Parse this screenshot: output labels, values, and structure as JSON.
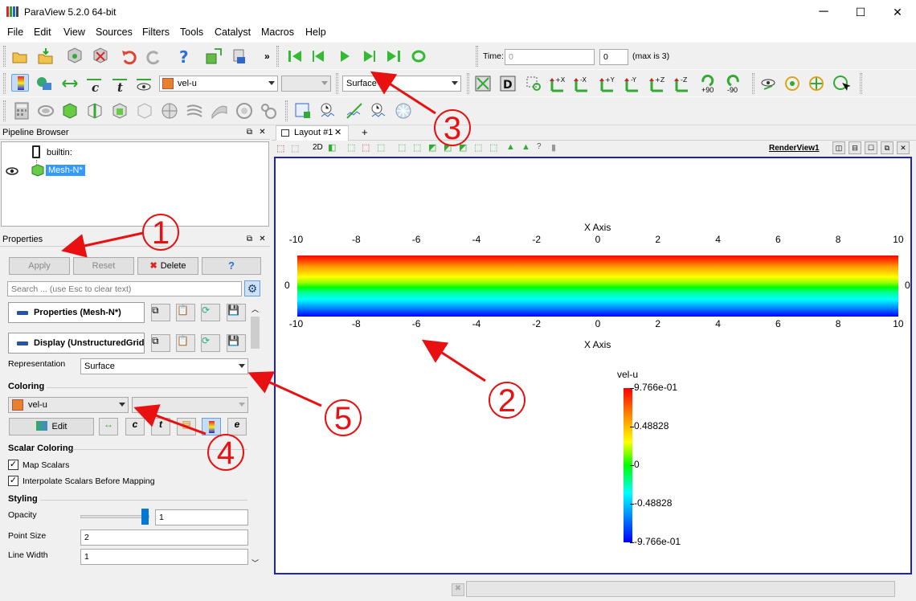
{
  "window": {
    "title": "ParaView 5.2.0 64-bit",
    "minimize": "─",
    "maximize": "☐",
    "close": "✕"
  },
  "menu": [
    "File",
    "Edit",
    "View",
    "Sources",
    "Filters",
    "Tools",
    "Catalyst",
    "Macros",
    "Help"
  ],
  "time_toolbar": {
    "time_label": "Time:",
    "time_value": "0",
    "index_value": "0",
    "max_label": "(max is 3)"
  },
  "color_toolbar": {
    "array": "vel-u",
    "component": "",
    "representation": "Surface",
    "rot_plus": "+90",
    "rot_minus": "-90"
  },
  "camera_axes": [
    "+X",
    "-X",
    "+Y",
    "-Y",
    "+Z",
    "-Z"
  ],
  "pipeline": {
    "header": "Pipeline Browser",
    "root": "builtin:",
    "item": "Mesh-N*"
  },
  "properties": {
    "header": "Properties",
    "apply": "Apply",
    "reset": "Reset",
    "delete": "Delete",
    "help": "?",
    "search_placeholder": "Search ... (use Esc to clear text)",
    "section_props": "Properties (Mesh-N*)",
    "section_display": "Display (UnstructuredGrid)",
    "representation_label": "Representation",
    "representation_value": "Surface",
    "coloring_label": "Coloring",
    "coloring_array": "vel-u",
    "edit_label": "Edit",
    "scalar_coloring_label": "Scalar Coloring",
    "map_scalars": "Map Scalars",
    "interpolate": "Interpolate Scalars Before Mapping",
    "styling_label": "Styling",
    "opacity_label": "Opacity",
    "opacity_value": "1",
    "point_size_label": "Point Size",
    "point_size_value": "2",
    "line_width_label": "Line Width",
    "line_width_value": "1"
  },
  "layout": {
    "tab": "Layout #1",
    "close": "✕",
    "add": "+",
    "view_mode": "2D",
    "render_view": "RenderView1"
  },
  "plot": {
    "axis_title_top": "X Axis",
    "axis_title_bottom": "X Axis",
    "x_ticks": [
      "-10",
      "-8",
      "-6",
      "-4",
      "-2",
      "0",
      "2",
      "4",
      "6",
      "8",
      "10"
    ],
    "y_tick_left": "0",
    "y_tick_right": "0",
    "colorbar_title": "vel-u",
    "colorbar_labels": [
      "9.766e-01",
      "0.48828",
      "0",
      "-0.48828",
      "-9.766e-01"
    ]
  },
  "chart_data": {
    "type": "heatmap",
    "xlim": [
      -10,
      10
    ],
    "colormap": [
      "#ff0000",
      "#ffff00",
      "#00ff00",
      "#00ffff",
      "#0000ff"
    ],
    "color_range": [
      -0.9766,
      0.9766
    ]
  },
  "annotations": [
    "1",
    "2",
    "3",
    "4",
    "5"
  ]
}
